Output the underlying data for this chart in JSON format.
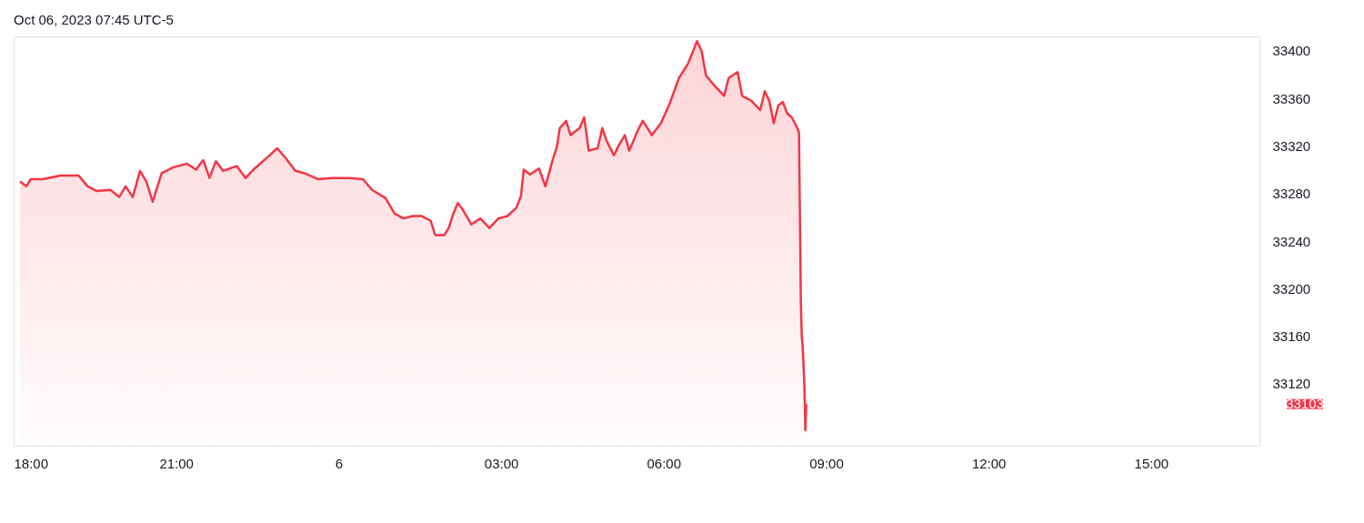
{
  "chart_data": {
    "type": "area",
    "title": "Oct 06, 2023 07:45 UTC-5",
    "x": [
      "2023-10-05T18:07",
      "2023-10-05T18:14",
      "2023-10-05T18:19",
      "2023-10-05T18:32",
      "2023-10-05T18:52",
      "2023-10-05T19:12",
      "2023-10-05T19:22",
      "2023-10-05T19:32",
      "2023-10-05T19:47",
      "2023-10-05T19:57",
      "2023-10-05T20:04",
      "2023-10-05T20:12",
      "2023-10-05T20:20",
      "2023-10-05T20:27",
      "2023-10-05T20:34",
      "2023-10-05T20:44",
      "2023-10-05T20:57",
      "2023-10-05T21:12",
      "2023-10-05T21:22",
      "2023-10-05T21:30",
      "2023-10-05T21:37",
      "2023-10-05T21:44",
      "2023-10-05T21:52",
      "2023-10-05T22:07",
      "2023-10-05T22:17",
      "2023-10-05T22:27",
      "2023-10-05T22:42",
      "2023-10-05T22:52",
      "2023-10-05T23:02",
      "2023-10-05T23:12",
      "2023-10-05T23:22",
      "2023-10-05T23:37",
      "2023-10-05T23:52",
      "2023-10-06T00:12",
      "2023-10-06T00:27",
      "2023-10-06T00:37",
      "2023-10-06T00:52",
      "2023-10-06T01:02",
      "2023-10-06T01:12",
      "2023-10-06T01:22",
      "2023-10-06T01:32",
      "2023-10-06T01:42",
      "2023-10-06T01:47",
      "2023-10-06T01:57",
      "2023-10-06T02:02",
      "2023-10-06T02:07",
      "2023-10-06T02:12",
      "2023-10-06T02:17",
      "2023-10-06T02:27",
      "2023-10-06T02:37",
      "2023-10-06T02:47",
      "2023-10-06T02:57",
      "2023-10-06T03:07",
      "2023-10-06T03:17",
      "2023-10-06T03:22",
      "2023-10-06T03:25",
      "2023-10-06T03:32",
      "2023-10-06T03:42",
      "2023-10-06T03:49",
      "2023-10-06T03:57",
      "2023-10-06T04:02",
      "2023-10-06T04:05",
      "2023-10-06T04:12",
      "2023-10-06T04:17",
      "2023-10-06T04:27",
      "2023-10-06T04:32",
      "2023-10-06T04:37",
      "2023-10-06T04:47",
      "2023-10-06T04:52",
      "2023-10-06T04:57",
      "2023-10-06T05:05",
      "2023-10-06T05:10",
      "2023-10-06T05:17",
      "2023-10-06T05:22",
      "2023-10-06T05:32",
      "2023-10-06T05:37",
      "2023-10-06T05:47",
      "2023-10-06T05:57",
      "2023-10-06T06:07",
      "2023-10-06T06:17",
      "2023-10-06T06:27",
      "2023-10-06T06:37",
      "2023-10-06T06:42",
      "2023-10-06T06:47",
      "2023-10-06T06:57",
      "2023-10-06T07:07",
      "2023-10-06T07:12",
      "2023-10-06T07:22",
      "2023-10-06T07:27",
      "2023-10-06T07:37",
      "2023-10-06T07:47",
      "2023-10-06T07:52",
      "2023-10-06T07:57",
      "2023-10-06T08:02",
      "2023-10-06T08:07",
      "2023-10-06T08:12",
      "2023-10-06T08:17",
      "2023-10-06T08:22",
      "2023-10-06T08:28",
      "2023-10-06T08:30",
      "2023-10-06T08:32",
      "2023-10-06T08:33",
      "2023-10-06T08:34",
      "2023-10-06T08:36",
      "2023-10-06T08:37",
      "2023-10-06T08:38"
    ],
    "series": [
      {
        "color": "#f23645",
        "values": [
          33290,
          33286,
          33292,
          33292,
          33295,
          33295,
          33286,
          33282,
          33283,
          33277,
          33286,
          33277,
          33299,
          33290,
          33273,
          33297,
          33302,
          33305,
          33300,
          33308,
          33293,
          33307,
          33299,
          33303,
          33293,
          33301,
          33311,
          33318,
          33309,
          33299,
          33297,
          33292,
          33293,
          33293,
          33292,
          33283,
          33276,
          33263,
          33259,
          33261,
          33261,
          33257,
          33245,
          33245,
          33251,
          33263,
          33272,
          33267,
          33254,
          33259,
          33251,
          33259,
          33261,
          33268,
          33278,
          33300,
          33296,
          33301,
          33286,
          33308,
          33320,
          33335,
          33341,
          33329,
          33335,
          33344,
          33316,
          33318,
          33335,
          33324,
          33312,
          33320,
          33329,
          33316,
          33334,
          33341,
          33329,
          33339,
          33356,
          33377,
          33389,
          33408,
          33400,
          33379,
          33370,
          33362,
          33377,
          33382,
          33362,
          33358,
          33350,
          33366,
          33358,
          33339,
          33354,
          33357,
          33347,
          33344,
          33335,
          33331,
          33190,
          33160,
          33152,
          33118,
          33081,
          33103
        ]
      }
    ],
    "xlim": [
      "2023-10-05T18:00",
      "2023-10-06T17:00"
    ],
    "xticks": [
      {
        "value": "2023-10-05T18:00",
        "label": "18:00"
      },
      {
        "value": "2023-10-05T21:00",
        "label": "21:00"
      },
      {
        "value": "2023-10-06T00:00",
        "label": "6"
      },
      {
        "value": "2023-10-06T03:00",
        "label": "03:00"
      },
      {
        "value": "2023-10-06T06:00",
        "label": "06:00"
      },
      {
        "value": "2023-10-06T09:00",
        "label": "09:00"
      },
      {
        "value": "2023-10-06T12:00",
        "label": "12:00"
      },
      {
        "value": "2023-10-06T15:00",
        "label": "15:00"
      }
    ],
    "ylim": [
      33068,
      33412
    ],
    "yticks": [
      33120,
      33160,
      33200,
      33240,
      33280,
      33320,
      33360,
      33400
    ],
    "annotations": [
      "33103"
    ]
  }
}
